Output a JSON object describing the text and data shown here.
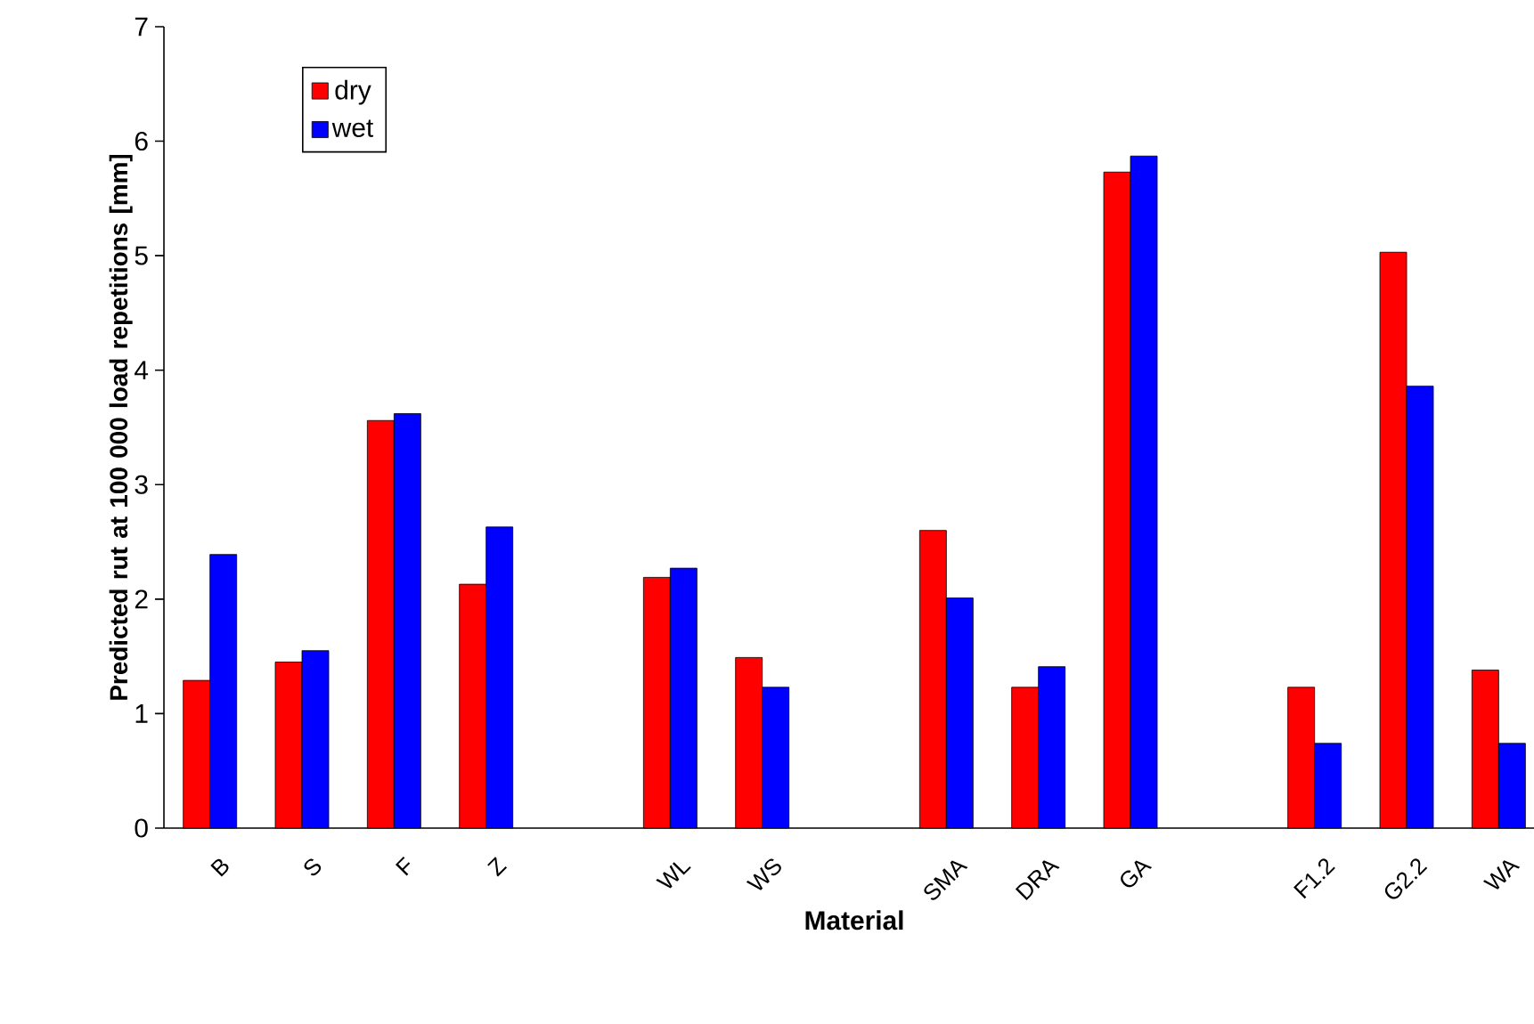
{
  "chart_data": {
    "type": "bar",
    "xlabel": "Material",
    "ylabel": "Predicted rut at 100 000 load repetitions [mm]",
    "categories": [
      "B",
      "S",
      "F",
      "Z",
      null,
      "WL",
      "WS",
      null,
      "SMA",
      "DRA",
      "GA",
      null,
      "F1.2",
      "G2.2",
      "WA"
    ],
    "series": [
      {
        "name": "dry",
        "color": "#ff0000",
        "values": [
          1.29,
          1.45,
          3.56,
          2.13,
          null,
          2.19,
          1.49,
          null,
          2.6,
          1.23,
          5.73,
          null,
          1.23,
          5.03,
          1.38
        ]
      },
      {
        "name": "wet",
        "color": "#0000ff",
        "values": [
          2.39,
          1.55,
          3.62,
          2.63,
          null,
          2.27,
          1.23,
          null,
          2.01,
          1.41,
          5.87,
          null,
          0.74,
          3.86,
          0.74
        ]
      }
    ],
    "ylim": [
      0,
      7
    ],
    "yticks": [
      0,
      1,
      2,
      3,
      4,
      5,
      6,
      7
    ],
    "legend": "top left",
    "grid": false
  }
}
